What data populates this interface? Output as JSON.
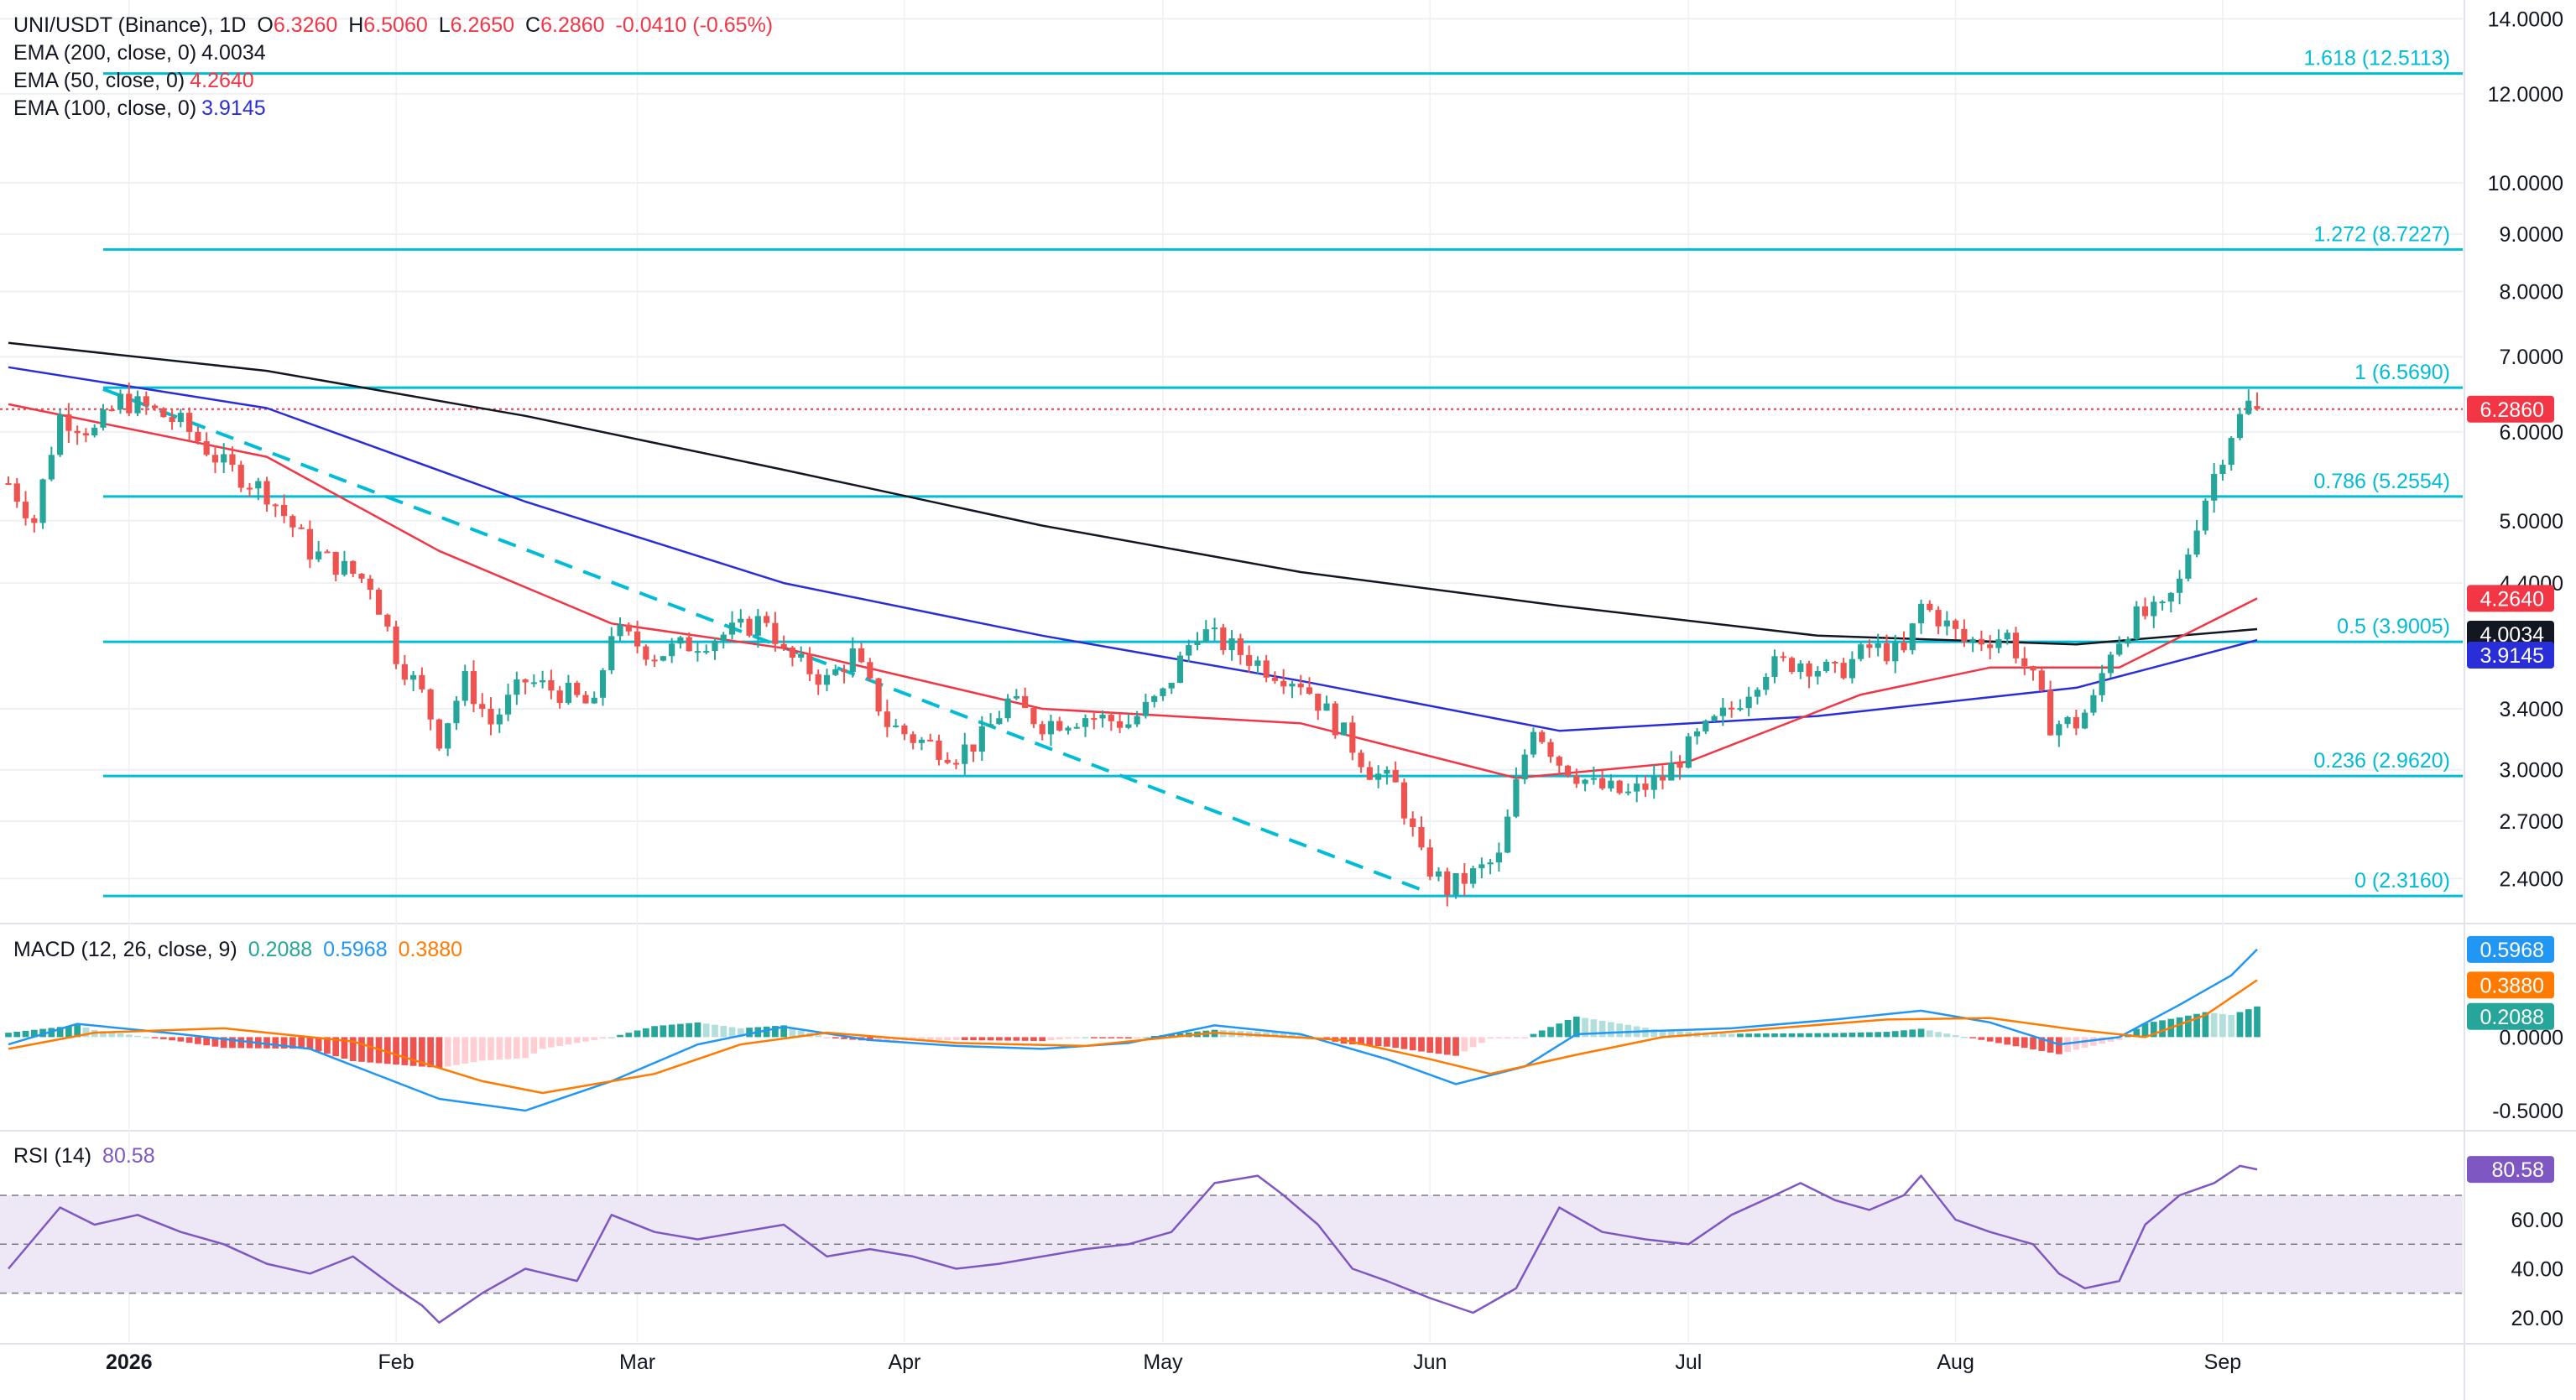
{
  "header": {
    "symbol": "UNI/USDT (Binance), 1D",
    "ohlc": {
      "o_label": "O",
      "o": "6.3260",
      "h_label": "H",
      "h": "6.5060",
      "l_label": "L",
      "l": "6.2650",
      "c_label": "C",
      "c": "6.2860",
      "change": "-0.0410 (-0.65%)"
    },
    "ema200": {
      "label": "EMA (200, close, 0)",
      "value": "4.0034"
    },
    "ema50": {
      "label": "EMA (50, close, 0)",
      "value": "4.2640"
    },
    "ema100": {
      "label": "EMA (100, close, 0)",
      "value": "3.9145"
    }
  },
  "macd_legend": {
    "label": "MACD (12, 26, close, 9)",
    "hist": "0.2088",
    "macd": "0.5968",
    "signal": "0.3880"
  },
  "rsi_legend": {
    "label": "RSI (14)",
    "value": "80.58"
  },
  "colors": {
    "up": "#26a69a",
    "down": "#ef5350",
    "fib": "#00bcd4",
    "ema200": "#131722",
    "ema50": "#f23645",
    "ema100": "#2a2ed8",
    "macd": "#2196f3",
    "signal": "#ff7a00",
    "rsi": "#7e57c2",
    "rsi_band": "#ede7f6",
    "price_tag": "#f23645",
    "grid": "#eef0f3"
  },
  "chart_data": [
    {
      "type": "candlestick",
      "title": "UNI/USDT (Binance), 1D",
      "scale": "log",
      "ylim": [
        2.2,
        14.3
      ],
      "y_ticks": [
        "14.0000",
        "12.0000",
        "10.0000",
        "9.0000",
        "8.0000",
        "7.0000",
        "6.0000",
        "5.0000",
        "4.4000",
        "3.4000",
        "3.0000",
        "2.7000",
        "2.4000"
      ],
      "x_ticks": [
        {
          "label": "2026",
          "bar": 14,
          "bold": true
        },
        {
          "label": "Feb",
          "bar": 45
        },
        {
          "label": "Mar",
          "bar": 73
        },
        {
          "label": "Apr",
          "bar": 104
        },
        {
          "label": "May",
          "bar": 134
        },
        {
          "label": "Jun",
          "bar": 165
        },
        {
          "label": "Jul",
          "bar": 195
        },
        {
          "label": "Aug",
          "bar": 226
        },
        {
          "label": "Sep",
          "bar": 257
        }
      ],
      "bars_total": 262,
      "fib_levels": [
        {
          "label": "1.618 (12.5113)",
          "value": 12.5113
        },
        {
          "label": "1.272 (8.7227)",
          "value": 8.7227
        },
        {
          "label": "1 (6.5690)",
          "value": 6.569
        },
        {
          "label": "0.786 (5.2554)",
          "value": 5.2554
        },
        {
          "label": "0.5 (3.9005)",
          "value": 3.9005
        },
        {
          "label": "0.236 (2.9620)",
          "value": 2.962
        },
        {
          "label": "0 (2.3160)",
          "value": 2.316
        }
      ],
      "fib_start_bar": 11,
      "trendline": {
        "from": {
          "bar": 11,
          "value": 6.55
        },
        "to": {
          "bar": 165,
          "value": 2.33
        }
      },
      "last_price": {
        "value": 6.286,
        "label": "6.2860"
      },
      "price_path": [
        [
          0,
          5.4
        ],
        [
          3,
          5.0
        ],
        [
          6,
          6.2
        ],
        [
          10,
          6.0
        ],
        [
          13,
          6.4
        ],
        [
          16,
          6.3
        ],
        [
          20,
          6.1
        ],
        [
          25,
          5.6
        ],
        [
          30,
          5.3
        ],
        [
          35,
          4.7
        ],
        [
          42,
          4.4
        ],
        [
          45,
          3.8
        ],
        [
          48,
          3.5
        ],
        [
          50,
          3.2
        ],
        [
          53,
          3.6
        ],
        [
          56,
          3.3
        ],
        [
          60,
          3.6
        ],
        [
          65,
          3.5
        ],
        [
          68,
          3.4
        ],
        [
          70,
          4.0
        ],
        [
          75,
          3.8
        ],
        [
          80,
          3.9
        ],
        [
          85,
          4.0
        ],
        [
          88,
          4.1
        ],
        [
          90,
          3.8
        ],
        [
          95,
          3.6
        ],
        [
          98,
          3.8
        ],
        [
          102,
          3.3
        ],
        [
          105,
          3.2
        ],
        [
          110,
          3.1
        ],
        [
          113,
          3.2
        ],
        [
          116,
          3.45
        ],
        [
          120,
          3.3
        ],
        [
          125,
          3.35
        ],
        [
          130,
          3.3
        ],
        [
          134,
          3.5
        ],
        [
          138,
          4.0
        ],
        [
          142,
          3.85
        ],
        [
          146,
          3.7
        ],
        [
          150,
          3.6
        ],
        [
          154,
          3.3
        ],
        [
          158,
          3.0
        ],
        [
          161,
          2.9
        ],
        [
          164,
          2.5
        ],
        [
          167,
          2.35
        ],
        [
          170,
          2.42
        ],
        [
          173,
          2.5
        ],
        [
          175,
          2.9
        ],
        [
          177,
          3.3
        ],
        [
          180,
          3.05
        ],
        [
          184,
          2.9
        ],
        [
          188,
          2.85
        ],
        [
          192,
          2.95
        ],
        [
          196,
          3.2
        ],
        [
          200,
          3.4
        ],
        [
          204,
          3.7
        ],
        [
          208,
          3.75
        ],
        [
          212,
          3.65
        ],
        [
          216,
          3.85
        ],
        [
          220,
          3.8
        ],
        [
          222,
          4.2
        ],
        [
          224,
          4.1
        ],
        [
          227,
          3.9
        ],
        [
          232,
          3.95
        ],
        [
          235,
          3.6
        ],
        [
          237,
          3.3
        ],
        [
          240,
          3.3
        ],
        [
          242,
          3.45
        ],
        [
          244,
          3.85
        ],
        [
          247,
          4.1
        ],
        [
          250,
          4.15
        ],
        [
          252,
          4.4
        ],
        [
          254,
          5.0
        ],
        [
          256,
          5.5
        ],
        [
          258,
          6.0
        ],
        [
          260,
          6.35
        ],
        [
          261,
          6.286
        ]
      ],
      "ema_path": {
        "ema200": [
          [
            0,
            7.2
          ],
          [
            30,
            6.8
          ],
          [
            60,
            6.2
          ],
          [
            90,
            5.55
          ],
          [
            120,
            4.95
          ],
          [
            150,
            4.5
          ],
          [
            180,
            4.2
          ],
          [
            210,
            3.95
          ],
          [
            240,
            3.88
          ],
          [
            261,
            4.0034
          ]
        ],
        "ema100": [
          [
            0,
            6.85
          ],
          [
            30,
            6.3
          ],
          [
            60,
            5.2
          ],
          [
            90,
            4.4
          ],
          [
            120,
            3.95
          ],
          [
            150,
            3.6
          ],
          [
            180,
            3.25
          ],
          [
            210,
            3.35
          ],
          [
            240,
            3.55
          ],
          [
            261,
            3.9145
          ]
        ],
        "ema50": [
          [
            0,
            6.35
          ],
          [
            30,
            5.7
          ],
          [
            50,
            4.7
          ],
          [
            70,
            4.05
          ],
          [
            90,
            3.85
          ],
          [
            120,
            3.4
          ],
          [
            150,
            3.3
          ],
          [
            175,
            2.95
          ],
          [
            195,
            3.05
          ],
          [
            215,
            3.5
          ],
          [
            230,
            3.7
          ],
          [
            245,
            3.7
          ],
          [
            261,
            4.264
          ]
        ]
      }
    },
    {
      "type": "macd",
      "title": "MACD (12, 26, close, 9)",
      "ylim": [
        -0.62,
        0.75
      ],
      "y_ticks": [
        "-0.5000",
        "0.0000"
      ],
      "tags": {
        "macd": "0.5968",
        "signal": "0.3880",
        "hist": "0.2088"
      },
      "macd_path": [
        [
          0,
          -0.05
        ],
        [
          8,
          0.09
        ],
        [
          20,
          0.02
        ],
        [
          35,
          -0.08
        ],
        [
          50,
          -0.42
        ],
        [
          60,
          -0.5
        ],
        [
          70,
          -0.3
        ],
        [
          80,
          -0.05
        ],
        [
          90,
          0.07
        ],
        [
          100,
          -0.02
        ],
        [
          110,
          -0.06
        ],
        [
          120,
          -0.08
        ],
        [
          130,
          -0.04
        ],
        [
          140,
          0.08
        ],
        [
          150,
          0.02
        ],
        [
          160,
          -0.15
        ],
        [
          168,
          -0.32
        ],
        [
          176,
          -0.2
        ],
        [
          182,
          0.02
        ],
        [
          190,
          0.04
        ],
        [
          200,
          0.06
        ],
        [
          212,
          0.12
        ],
        [
          222,
          0.18
        ],
        [
          230,
          0.1
        ],
        [
          238,
          -0.05
        ],
        [
          245,
          0.0
        ],
        [
          252,
          0.22
        ],
        [
          258,
          0.42
        ],
        [
          261,
          0.5968
        ]
      ],
      "signal_path": [
        [
          0,
          -0.08
        ],
        [
          10,
          0.03
        ],
        [
          25,
          0.06
        ],
        [
          40,
          -0.03
        ],
        [
          55,
          -0.3
        ],
        [
          62,
          -0.38
        ],
        [
          75,
          -0.25
        ],
        [
          85,
          -0.05
        ],
        [
          95,
          0.03
        ],
        [
          110,
          -0.04
        ],
        [
          125,
          -0.06
        ],
        [
          140,
          0.03
        ],
        [
          155,
          -0.02
        ],
        [
          165,
          -0.15
        ],
        [
          172,
          -0.25
        ],
        [
          182,
          -0.12
        ],
        [
          192,
          0.0
        ],
        [
          205,
          0.06
        ],
        [
          218,
          0.12
        ],
        [
          230,
          0.13
        ],
        [
          240,
          0.05
        ],
        [
          248,
          0.0
        ],
        [
          255,
          0.15
        ],
        [
          261,
          0.388
        ]
      ]
    },
    {
      "type": "line",
      "title": "RSI (14)",
      "ylim": [
        10,
        95
      ],
      "y_ticks": [
        "60.00",
        "40.00",
        "20.00"
      ],
      "band": [
        30,
        70
      ],
      "midline": 50,
      "last": "80.58",
      "rsi_path": [
        [
          0,
          40
        ],
        [
          6,
          65
        ],
        [
          10,
          58
        ],
        [
          15,
          62
        ],
        [
          20,
          55
        ],
        [
          25,
          50
        ],
        [
          30,
          42
        ],
        [
          35,
          38
        ],
        [
          40,
          45
        ],
        [
          45,
          32
        ],
        [
          48,
          25
        ],
        [
          50,
          18
        ],
        [
          55,
          30
        ],
        [
          60,
          40
        ],
        [
          66,
          35
        ],
        [
          70,
          62
        ],
        [
          75,
          55
        ],
        [
          80,
          52
        ],
        [
          85,
          55
        ],
        [
          90,
          58
        ],
        [
          95,
          45
        ],
        [
          100,
          48
        ],
        [
          105,
          45
        ],
        [
          110,
          40
        ],
        [
          115,
          42
        ],
        [
          120,
          45
        ],
        [
          125,
          48
        ],
        [
          130,
          50
        ],
        [
          135,
          55
        ],
        [
          140,
          75
        ],
        [
          145,
          78
        ],
        [
          148,
          70
        ],
        [
          152,
          58
        ],
        [
          156,
          40
        ],
        [
          160,
          35
        ],
        [
          165,
          28
        ],
        [
          170,
          22
        ],
        [
          175,
          32
        ],
        [
          180,
          65
        ],
        [
          185,
          55
        ],
        [
          190,
          52
        ],
        [
          195,
          50
        ],
        [
          200,
          62
        ],
        [
          205,
          70
        ],
        [
          208,
          75
        ],
        [
          212,
          68
        ],
        [
          216,
          64
        ],
        [
          220,
          70
        ],
        [
          222,
          78
        ],
        [
          226,
          60
        ],
        [
          230,
          55
        ],
        [
          235,
          50
        ],
        [
          238,
          38
        ],
        [
          241,
          32
        ],
        [
          245,
          35
        ],
        [
          248,
          58
        ],
        [
          252,
          70
        ],
        [
          256,
          75
        ],
        [
          259,
          82
        ],
        [
          261,
          80.58
        ]
      ]
    }
  ]
}
